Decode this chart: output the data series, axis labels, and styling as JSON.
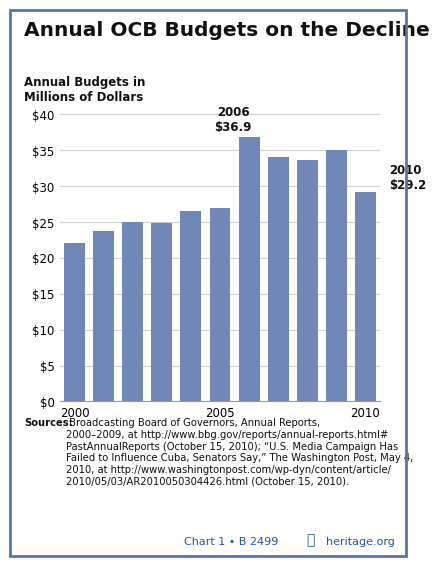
{
  "title": "Annual OCB Budgets on the Decline",
  "ylabel": "Annual Budgets in\nMillions of Dollars",
  "years": [
    2000,
    2001,
    2002,
    2003,
    2004,
    2005,
    2006,
    2007,
    2008,
    2009,
    2010
  ],
  "values": [
    22.1,
    23.8,
    25.0,
    24.9,
    26.5,
    27.0,
    36.9,
    34.0,
    33.7,
    35.0,
    29.2
  ],
  "bar_color": "#7087b8",
  "ylim": [
    0,
    40
  ],
  "yticks": [
    0,
    5,
    10,
    15,
    20,
    25,
    30,
    35,
    40
  ],
  "xtick_labels": [
    "2000",
    "",
    "",
    "",
    "",
    "2005",
    "",
    "",
    "",
    "",
    "2010"
  ],
  "ann_2006_idx": 6,
  "ann_2010_idx": 10,
  "source_bold": "Sources:",
  "source_rest": " Broadcasting Board of Governors, Annual Reports,\n2000–2009, at http://www.bbg.gov/reports/annual-reports.html#\nPastAnnualReports (October 15, 2010); “U.S. Media Campaign Has\nFailed to Influence Cuba, Senators Say,” The Washington Post, May 4,\n2010, at http://www.washingtonpost.com/wp-dyn/content/article/\n2010/05/03/AR2010050304426.html (October 15, 2010).",
  "chart_id_text": "Chart 1 • B 2499",
  "heritage_text": "heritage.org",
  "blue_color": "#2255a4",
  "background_color": "#ffffff",
  "grid_color": "#d0d0d0",
  "title_fontsize": 14.5,
  "ylabel_fontsize": 8.5,
  "tick_fontsize": 8.5,
  "annotation_fontsize": 8.5,
  "source_fontsize": 7.2,
  "chart_id_fontsize": 8.0,
  "border_color": "#5577aa"
}
